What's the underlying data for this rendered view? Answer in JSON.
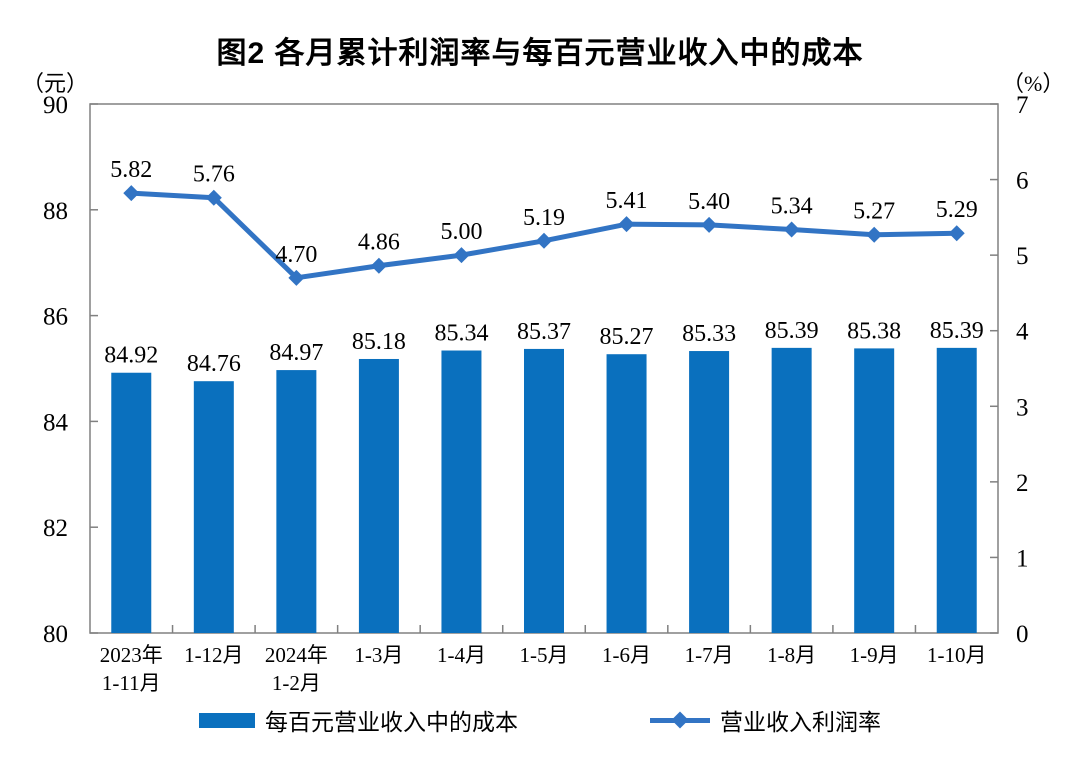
{
  "chart_data": {
    "type": "bar",
    "title": "图2 各月累计利润率与每百元营业收入中的成本",
    "categories": [
      "2023年\n1-11月",
      "1-12月",
      "2024年\n1-2月",
      "1-3月",
      "1-4月",
      "1-5月",
      "1-6月",
      "1-7月",
      "1-8月",
      "1-9月",
      "1-10月"
    ],
    "left_axis": {
      "unit": "（元）",
      "min": 80,
      "max": 90,
      "step": 2,
      "ticks": [
        90,
        88,
        86,
        84,
        82,
        80
      ]
    },
    "right_axis": {
      "unit": "（%）",
      "min": 0,
      "max": 7,
      "step": 1,
      "ticks": [
        7,
        6,
        5,
        4,
        3,
        2,
        1,
        0
      ]
    },
    "series": [
      {
        "name": "每百元营业收入中的成本",
        "type": "bar",
        "axis": "left",
        "color": "#0a70be",
        "values": [
          84.92,
          84.76,
          84.97,
          85.18,
          85.34,
          85.37,
          85.27,
          85.33,
          85.39,
          85.38,
          85.39
        ]
      },
      {
        "name": "营业收入利润率",
        "type": "line",
        "axis": "right",
        "color": "#3274c4",
        "marker": "diamond",
        "values": [
          5.82,
          5.76,
          4.7,
          4.86,
          5.0,
          5.19,
          5.41,
          5.4,
          5.34,
          5.27,
          5.29
        ]
      }
    ],
    "grid": false,
    "legend_position": "bottom",
    "value_labels": true,
    "value_label_decimals": 2,
    "axis_color": "#808080"
  }
}
